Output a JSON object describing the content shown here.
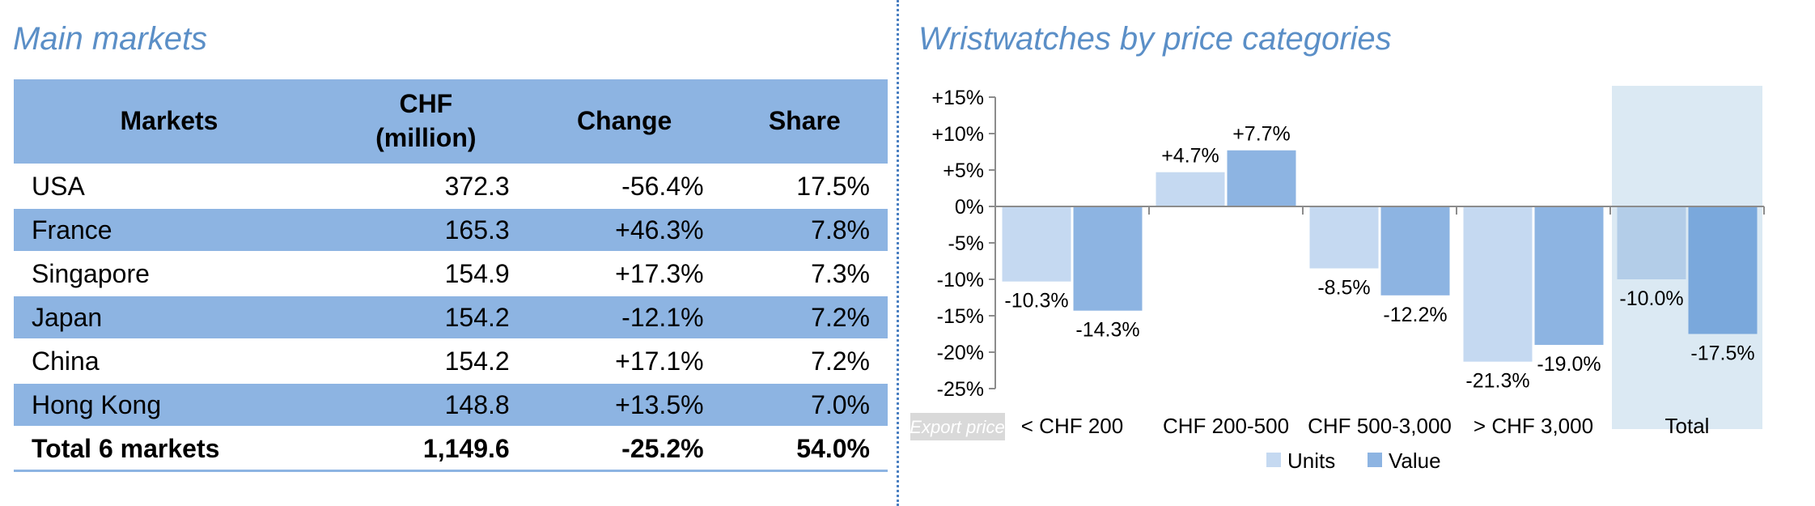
{
  "left_title": "Main markets",
  "right_title": "Wristwatches by price categories",
  "markets_table": {
    "headers": [
      "Markets",
      "CHF\n(million)",
      "Change",
      "Share"
    ],
    "rows": [
      {
        "market": "USA",
        "chf": "372.3",
        "change": "-56.4%",
        "share": "17.5%"
      },
      {
        "market": "France",
        "chf": "165.3",
        "change": "+46.3%",
        "share": "7.8%"
      },
      {
        "market": "Singapore",
        "chf": "154.9",
        "change": "+17.3%",
        "share": "7.3%"
      },
      {
        "market": "Japan",
        "chf": "154.2",
        "change": "-12.1%",
        "share": "7.2%"
      },
      {
        "market": "China",
        "chf": "154.2",
        "change": "+17.1%",
        "share": "7.2%"
      },
      {
        "market": "Hong Kong",
        "chf": "148.8",
        "change": "+13.5%",
        "share": "7.0%"
      }
    ],
    "total": {
      "market": "Total 6 markets",
      "chf": "1,149.6",
      "change": "-25.2%",
      "share": "54.0%"
    }
  },
  "chart_data": {
    "type": "bar",
    "categories": [
      "< CHF 200",
      "CHF 200-500",
      "CHF 500-3,000",
      "> CHF 3,000",
      "Total"
    ],
    "series": [
      {
        "name": "Units",
        "values": [
          -10.3,
          4.7,
          -8.5,
          -21.3,
          -10.0
        ],
        "labels": [
          "-10.3%",
          "+4.7%",
          "-8.5%",
          "-21.3%",
          "-10.0%"
        ],
        "color": "#c5d9f1",
        "highlight_color": "#b3cde8"
      },
      {
        "name": "Value",
        "values": [
          -14.3,
          7.7,
          -12.2,
          -19.0,
          -17.5
        ],
        "labels": [
          "-14.3%",
          "+7.7%",
          "-12.2%",
          "-19.0%",
          "-17.5%"
        ],
        "color": "#8db4e2",
        "highlight_color": "#7aa8dc"
      }
    ],
    "y_ticks": [
      15,
      10,
      5,
      0,
      -5,
      -10,
      -15,
      -20,
      -25
    ],
    "y_tick_labels": [
      "+15%",
      "+10%",
      "+5%",
      "0%",
      "-5%",
      "-10%",
      "-15%",
      "-20%",
      "-25%"
    ],
    "ylim": [
      -25,
      15
    ],
    "highlight_category": "Total",
    "highlight_color": "#dbe9f3",
    "x_axis_tag": "Export price",
    "legend_position": "bottom",
    "grid": false,
    "title": "Wristwatches by price categories"
  }
}
